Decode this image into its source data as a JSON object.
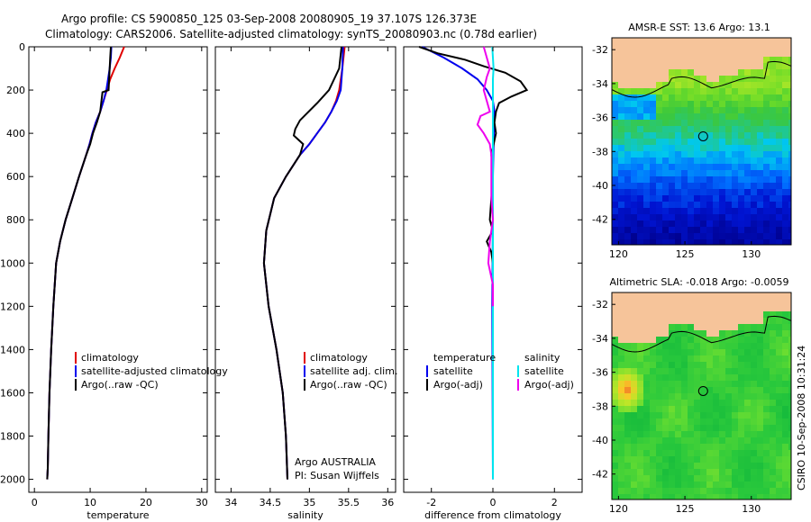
{
  "header": {
    "line1": "Argo profile: CS 5900850_125 03-Sep-2008 20080905_19 37.107S 126.373E",
    "line2": "Climatology: CARS2006. Satellite-adjusted climatology: synTS_20080903.nc (0.78d earlier)"
  },
  "colors": {
    "climatology": "#e00000",
    "satellite": "#0000ee",
    "argo": "#000000",
    "sal_satellite": "#00e5ee",
    "sal_argo": "#ee00ee",
    "land": "#f6c49a"
  },
  "chart_data": [
    {
      "id": "temperature",
      "type": "line",
      "xlabel": "temperature",
      "ylabel": "",
      "xlim": [
        -1,
        31
      ],
      "ylim": [
        2060,
        0
      ],
      "xticks": [
        0,
        10,
        20,
        30
      ],
      "yticks": [
        0,
        200,
        400,
        600,
        800,
        1000,
        1200,
        1400,
        1600,
        1800,
        2000
      ],
      "legend": [
        "climatology",
        "satellite-adjusted climatology",
        "Argo(..raw -QC)"
      ],
      "legend_position": "lower-middle",
      "series": [
        {
          "name": "climatology",
          "x": [
            16.1,
            15.3,
            14.4,
            13.6,
            13.0,
            12.4,
            11.8,
            11.0,
            10.4,
            9.9,
            9.3,
            8.0,
            6.8,
            5.6,
            4.6,
            3.9,
            3.4,
            3.0,
            2.7,
            2.5,
            2.4,
            2.3
          ],
          "y": [
            0,
            50,
            100,
            150,
            200,
            250,
            300,
            350,
            400,
            450,
            500,
            600,
            700,
            800,
            900,
            1000,
            1200,
            1400,
            1600,
            1800,
            1950,
            2000
          ]
        },
        {
          "name": "satellite",
          "x": [
            13.8,
            13.7,
            13.5,
            13.2,
            12.9,
            12.4,
            11.8,
            11.0,
            10.4,
            9.9,
            9.3,
            8.0,
            6.8,
            5.6,
            4.6,
            3.9,
            3.4,
            3.0,
            2.7,
            2.5,
            2.4,
            2.3
          ],
          "y": [
            0,
            50,
            100,
            150,
            200,
            250,
            300,
            350,
            400,
            450,
            500,
            600,
            700,
            800,
            900,
            1000,
            1200,
            1400,
            1600,
            1800,
            1950,
            2000
          ]
        },
        {
          "name": "argo",
          "x": [
            13.7,
            13.6,
            13.5,
            13.4,
            13.3,
            12.2,
            11.8,
            11.2,
            10.5,
            10.0,
            9.3,
            8.0,
            6.8,
            5.6,
            4.6,
            3.9,
            3.4,
            3.0,
            2.7,
            2.5,
            2.4,
            2.3
          ],
          "y": [
            0,
            50,
            100,
            150,
            200,
            210,
            300,
            350,
            400,
            450,
            500,
            600,
            700,
            800,
            900,
            1000,
            1200,
            1400,
            1600,
            1800,
            1950,
            2000
          ]
        }
      ]
    },
    {
      "id": "salinity",
      "type": "line",
      "xlabel": "salinity",
      "ylabel": "",
      "xlim": [
        33.8,
        36.1
      ],
      "ylim": [
        2060,
        0
      ],
      "xticks": [
        34,
        34.5,
        35,
        35.5,
        36
      ],
      "legend": [
        "climatology",
        "satellite adj. clim.",
        "Argo(..raw -QC)"
      ],
      "legend_position": "lower-right",
      "annotation": [
        "Argo AUSTRALIA",
        "PI: Susan Wijffels"
      ],
      "series": [
        {
          "name": "climatology",
          "x": [
            35.45,
            35.42,
            35.38,
            35.34,
            35.28,
            35.2,
            35.1,
            35.0,
            34.88,
            34.7,
            34.55,
            34.45,
            34.42,
            34.48,
            34.58,
            34.66,
            34.7,
            34.72
          ],
          "y": [
            0,
            100,
            200,
            250,
            300,
            350,
            400,
            450,
            500,
            600,
            700,
            850,
            1000,
            1200,
            1400,
            1600,
            1800,
            2000
          ]
        },
        {
          "name": "satellite",
          "x": [
            35.43,
            35.42,
            35.4,
            35.35,
            35.28,
            35.2,
            35.1,
            35.0,
            34.88,
            34.7,
            34.55,
            34.45,
            34.42,
            34.48,
            34.58,
            34.66,
            34.7,
            34.72
          ],
          "y": [
            0,
            100,
            200,
            250,
            300,
            350,
            400,
            450,
            500,
            600,
            700,
            850,
            1000,
            1200,
            1400,
            1600,
            1800,
            2000
          ]
        },
        {
          "name": "argo",
          "x": [
            35.41,
            35.38,
            35.25,
            35.2,
            35.1,
            34.88,
            34.82,
            34.8,
            34.92,
            34.88,
            34.7,
            34.55,
            34.45,
            34.42,
            34.48,
            34.58,
            34.66,
            34.7,
            34.72
          ],
          "y": [
            0,
            100,
            200,
            220,
            260,
            340,
            380,
            410,
            450,
            500,
            600,
            700,
            850,
            1000,
            1200,
            1400,
            1600,
            1800,
            2000
          ]
        }
      ]
    },
    {
      "id": "difference",
      "type": "line",
      "xlabel": "difference from climatology",
      "ylabel": "",
      "xlim": [
        -2.9,
        2.9
      ],
      "ylim": [
        2060,
        0
      ],
      "xticks": [
        -2,
        0,
        2
      ],
      "legend": [
        "temperature",
        "satellite",
        "Argo(-adj)",
        "salinity",
        "satellite",
        "Argo(-adj)"
      ],
      "legend_position": "lower-middle",
      "series": [
        {
          "name": "temperature satellite",
          "x": [
            -2.3,
            -1.6,
            -1.0,
            -0.5,
            -0.2,
            0.0,
            0.05,
            0.03,
            0.0,
            0.0,
            -0.02,
            0.0
          ],
          "y": [
            0,
            50,
            100,
            150,
            200,
            250,
            300,
            400,
            600,
            800,
            1200,
            2000
          ]
        },
        {
          "name": "temperature Argo",
          "x": [
            -2.4,
            -1.8,
            -0.9,
            -0.3,
            0.4,
            0.9,
            1.1,
            0.6,
            0.2,
            0.1,
            0.05,
            0.1,
            -0.05,
            0.0,
            -0.1,
            0.0,
            -0.2,
            -0.05,
            0.0,
            0.0
          ],
          "y": [
            0,
            30,
            60,
            90,
            120,
            160,
            200,
            230,
            260,
            300,
            350,
            400,
            500,
            600,
            800,
            850,
            900,
            950,
            1000,
            1100
          ]
        },
        {
          "name": "salinity satellite",
          "x": [
            -0.02,
            0.0,
            0.02,
            0.0,
            0.0,
            0.0,
            0.0,
            0.0
          ],
          "y": [
            0,
            50,
            100,
            150,
            200,
            400,
            1000,
            2000
          ]
        },
        {
          "name": "salinity Argo",
          "x": [
            -0.3,
            -0.2,
            -0.1,
            -0.2,
            -0.3,
            -0.2,
            -0.1,
            -0.4,
            -0.5,
            -0.3,
            -0.1,
            -0.05,
            -0.05,
            0.0,
            -0.1,
            -0.15,
            0.0,
            0.0
          ],
          "y": [
            0,
            50,
            100,
            140,
            200,
            250,
            300,
            320,
            360,
            400,
            450,
            500,
            700,
            800,
            900,
            1000,
            1100,
            1200
          ]
        }
      ]
    },
    {
      "id": "sst-map",
      "type": "heatmap",
      "title": "AMSR-E SST: 13.6 Argo: 13.1",
      "xticks": [
        120,
        125,
        130
      ],
      "yticks": [
        -32,
        -34,
        -36,
        -38,
        -40,
        -42
      ],
      "xlim": [
        119.5,
        133
      ],
      "ylim": [
        -43.5,
        -31.3
      ],
      "marker": {
        "lon": 126.373,
        "lat": -37.107
      }
    },
    {
      "id": "sla-map",
      "type": "heatmap",
      "title": "Altimetric SLA: -0.018 Argo: -0.0059",
      "xticks": [
        120,
        125,
        130
      ],
      "yticks": [
        -32,
        -34,
        -36,
        -38,
        -40,
        -42
      ],
      "xlim": [
        119.5,
        133
      ],
      "ylim": [
        -43.5,
        -31.3
      ],
      "marker": {
        "lon": 126.373,
        "lat": -37.107
      }
    }
  ],
  "footer": {
    "stamp": "CSIRO 10-Sep-2008 10:31:24"
  }
}
